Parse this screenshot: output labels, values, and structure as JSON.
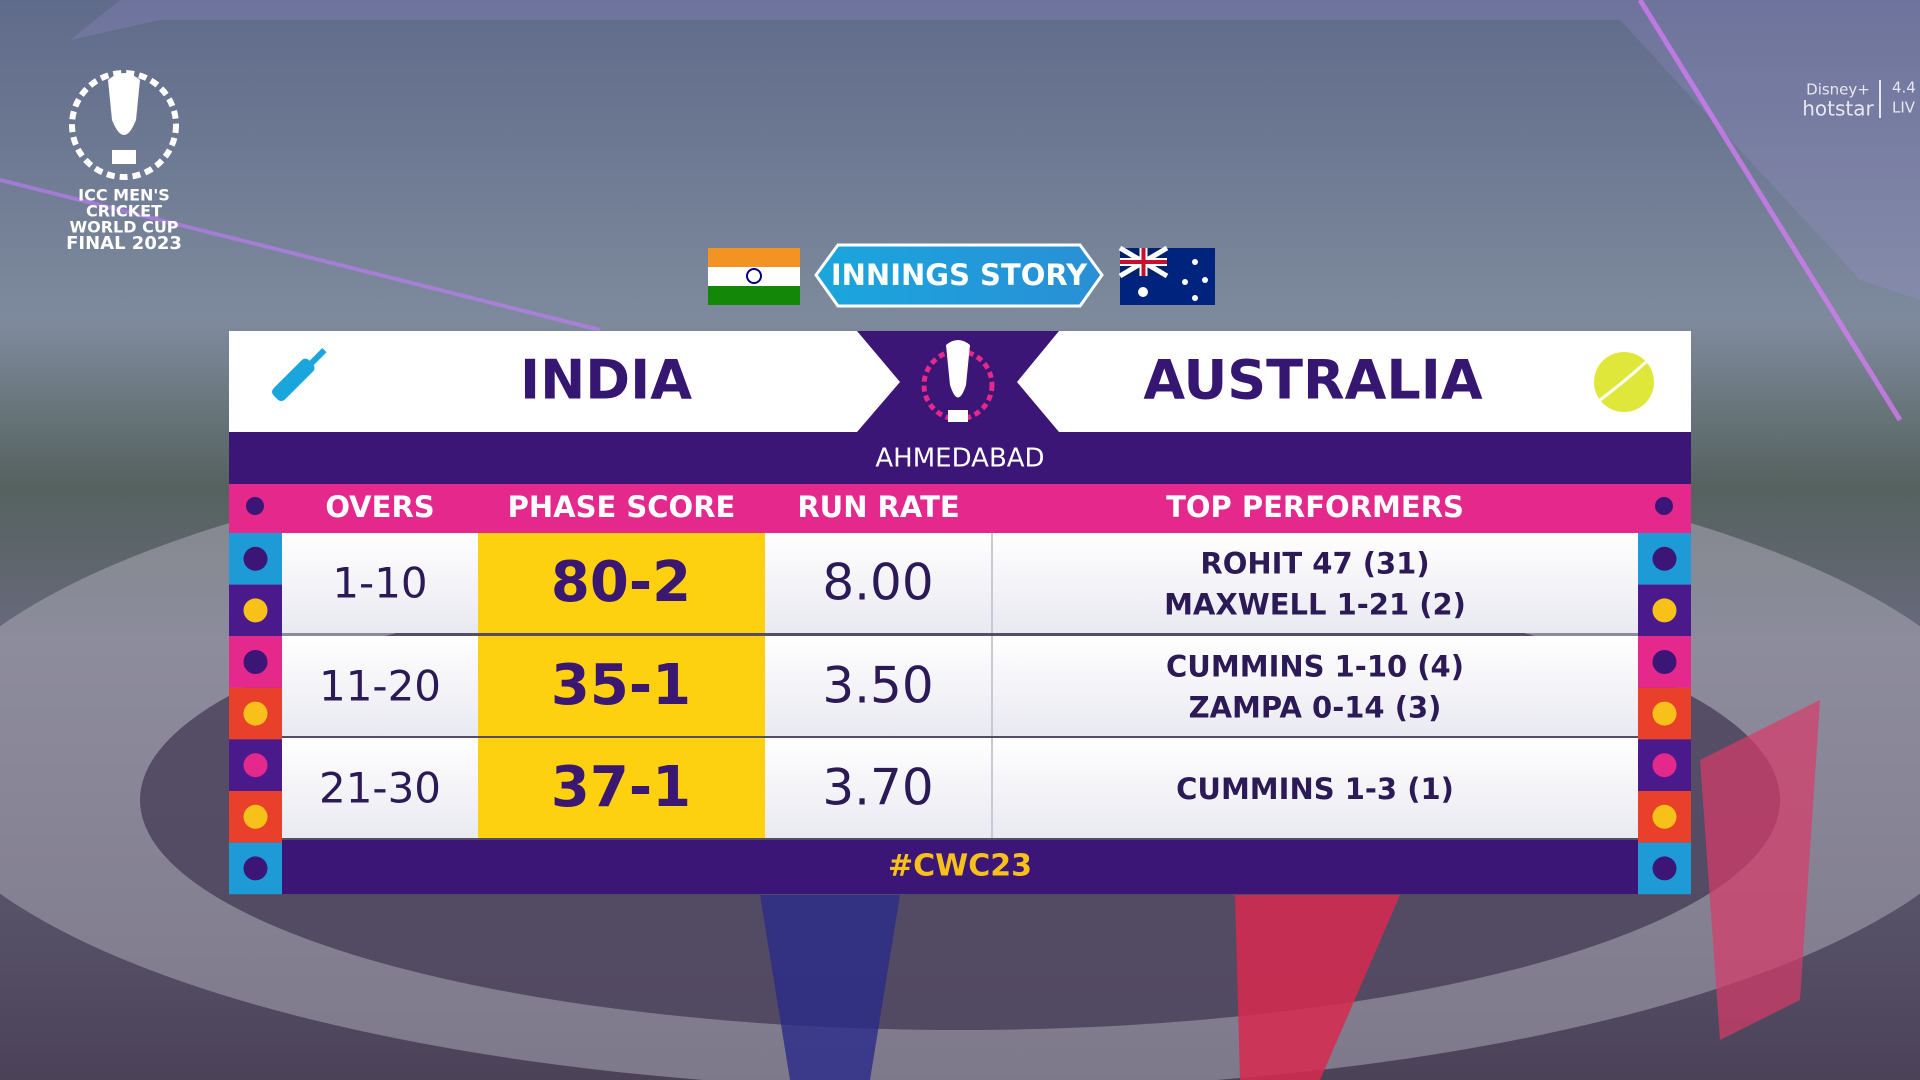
{
  "logo": {
    "lines": [
      "ICC MEN'S",
      "CRICKET",
      "WORLD CUP",
      "FINAL 2023"
    ]
  },
  "broadcaster": {
    "brand": "Disney+",
    "name": "hotstar",
    "version": "4.4",
    "status": "LIV"
  },
  "banner": {
    "title": "INNINGS STORY"
  },
  "scorecard": {
    "batting_team": "INDIA",
    "bowling_team": "AUSTRALIA",
    "venue": "AHMEDABAD",
    "columns": [
      "OVERS",
      "PHASE SCORE",
      "RUN RATE",
      "TOP PERFORMERS"
    ],
    "rows": [
      {
        "overs": "1-10",
        "phase_score": "80-2",
        "run_rate": "8.00",
        "top_performers": [
          "ROHIT 47 (31)",
          "MAXWELL 1-21 (2)"
        ]
      },
      {
        "overs": "11-20",
        "phase_score": "35-1",
        "run_rate": "3.50",
        "top_performers": [
          "CUMMINS 1-10 (4)",
          "ZAMPA 0-14 (3)"
        ]
      },
      {
        "overs": "21-30",
        "phase_score": "37-1",
        "run_rate": "3.70",
        "top_performers": [
          "CUMMINS 1-3 (1)"
        ]
      }
    ],
    "footer": "#CWC23"
  }
}
